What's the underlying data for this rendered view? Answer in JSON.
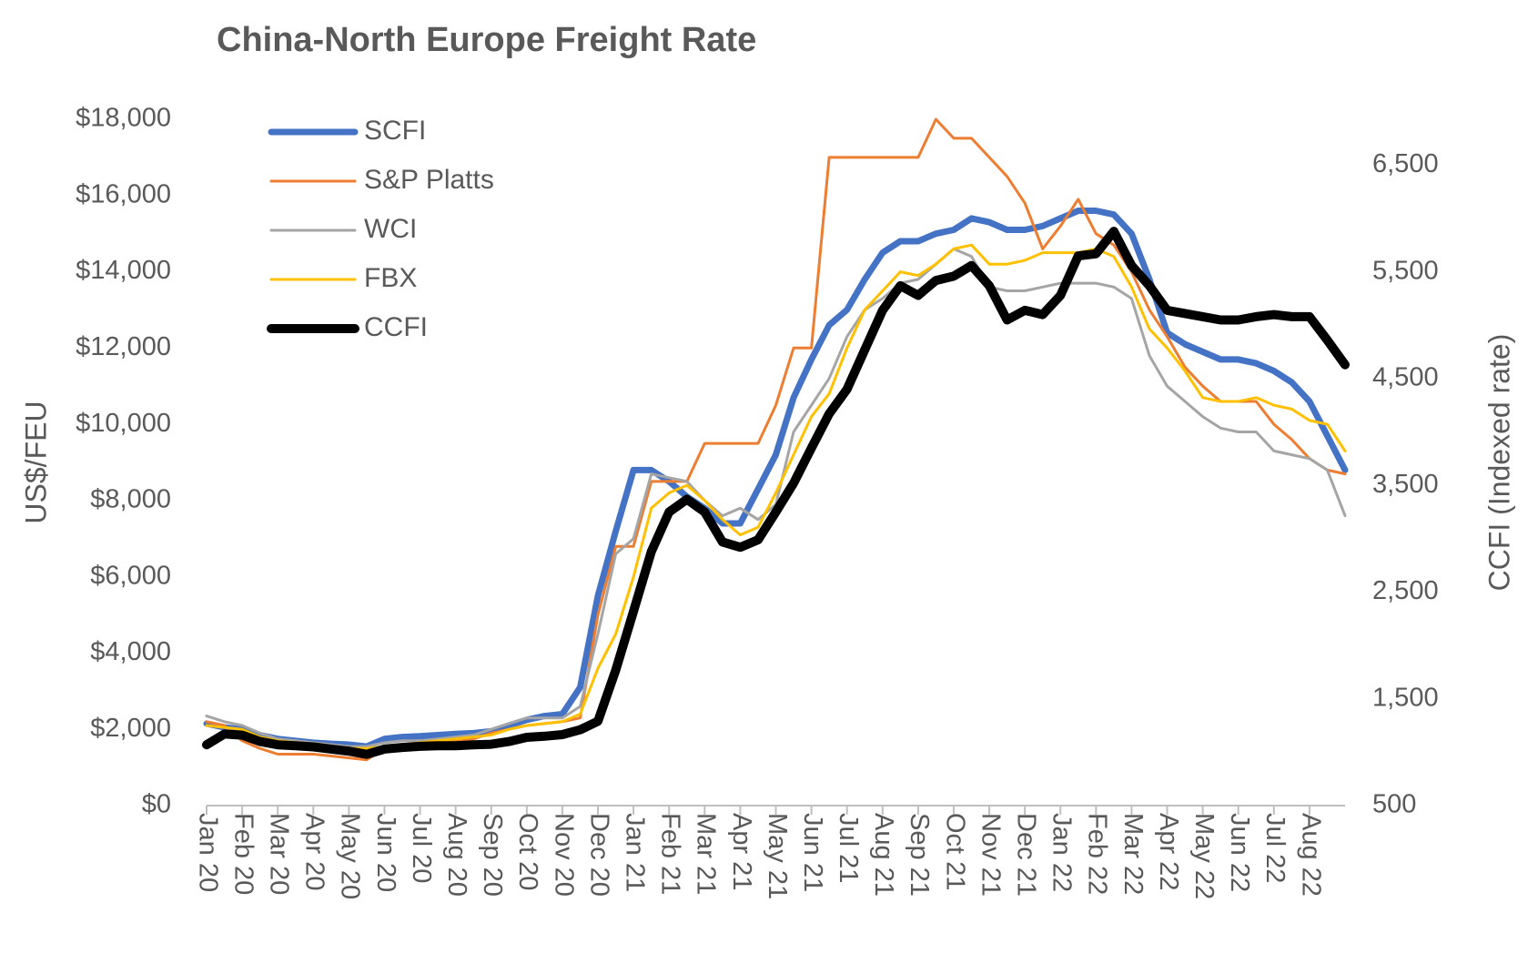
{
  "chart_data": {
    "type": "line",
    "title": "China-North Europe Freight Rate",
    "y_label": "US$/FEU",
    "y2_label": "CCFI (Indexed rate)",
    "legend": "upper left",
    "grid": false,
    "categories": [
      "Jan 20",
      null,
      "Feb 20",
      null,
      "Mar 20",
      null,
      "Apr 20",
      null,
      "May 20",
      null,
      "Jun 20",
      null,
      "Jul 20",
      null,
      "Aug 20",
      null,
      "Sep 20",
      null,
      "Oct 20",
      null,
      "Nov 20",
      null,
      "Dec 20",
      null,
      "Jan 21",
      null,
      "Feb 21",
      null,
      "Mar 21",
      null,
      "Apr 21",
      null,
      "May 21",
      null,
      "Jun 21",
      null,
      "Jul 21",
      null,
      "Aug 21",
      null,
      "Sep 21",
      null,
      "Oct 21",
      null,
      "Nov 21",
      null,
      "Dec 21",
      null,
      "Jan 22",
      null,
      "Feb 22",
      null,
      "Mar 22",
      null,
      "Apr 22",
      null,
      "May 22",
      null,
      "Jun 22",
      null,
      "Jul 22",
      null,
      "Aug 22",
      null,
      null
    ],
    "ylim": [
      0,
      18000
    ],
    "yticks": [
      {
        "value": 0,
        "label": "$0"
      },
      {
        "value": 2000,
        "label": "$2,000"
      },
      {
        "value": 4000,
        "label": "$4,000"
      },
      {
        "value": 6000,
        "label": "$6,000"
      },
      {
        "value": 8000,
        "label": "$8,000"
      },
      {
        "value": 10000,
        "label": "$10,000"
      },
      {
        "value": 12000,
        "label": "$12,000"
      },
      {
        "value": 14000,
        "label": "$14,000"
      },
      {
        "value": 16000,
        "label": "$16,000"
      },
      {
        "value": 18000,
        "label": "$18,000"
      }
    ],
    "y2lim": [
      500,
      6930
    ],
    "y2ticks": [
      500,
      {
        "value": 1500,
        "label": "1,500"
      },
      {
        "value": 2500,
        "label": "2,500"
      },
      {
        "value": 3500,
        "label": "3,500"
      },
      {
        "value": 4500,
        "label": "4,500"
      },
      {
        "value": 5500,
        "label": "5,500"
      },
      {
        "value": 6500,
        "label": "6,500"
      }
    ],
    "series": [
      {
        "name": "SCFI",
        "color": "#4472c4",
        "width": 7,
        "values": [
          2150,
          2050,
          2000,
          1850,
          1750,
          1700,
          1650,
          1620,
          1600,
          1550,
          1750,
          1800,
          1820,
          1850,
          1880,
          1900,
          1950,
          2100,
          2250,
          2350,
          2400,
          3100,
          5500,
          7200,
          8800,
          8800,
          8500,
          8100,
          7800,
          7400,
          7400,
          8300,
          9200,
          10700,
          11700,
          12600,
          13000,
          13800,
          14500,
          14800,
          14800,
          15000,
          15100,
          15400,
          15300,
          15100,
          15100,
          15200,
          15400,
          15600,
          15600,
          15500,
          15000,
          13800,
          12400,
          12100,
          11900,
          11700,
          11700,
          11600,
          11400,
          11100,
          10600,
          9700,
          8800
        ]
      },
      {
        "name": "S&P Platts",
        "color": "#ed7d31",
        "width": 3,
        "values": [
          2200,
          2100,
          1700,
          1500,
          1350,
          1350,
          1350,
          1300,
          1250,
          1200,
          1500,
          1600,
          1650,
          1700,
          1700,
          1750,
          1900,
          2000,
          2100,
          2150,
          2200,
          2300,
          5000,
          6800,
          6800,
          8500,
          8500,
          8500,
          9500,
          9500,
          9500,
          9500,
          10500,
          12000,
          12000,
          17000,
          17000,
          17000,
          17000,
          17000,
          17000,
          18000,
          17500,
          17500,
          17000,
          16500,
          15800,
          14600,
          15200,
          15900,
          15000,
          14700,
          14000,
          13000,
          12300,
          11500,
          11000,
          10600,
          10600,
          10600,
          10000,
          9600,
          9100,
          8800,
          8700
        ]
      },
      {
        "name": "WCI",
        "color": "#a5a5a5",
        "width": 3,
        "values": [
          2350,
          2200,
          2100,
          1900,
          1750,
          1700,
          1650,
          1600,
          1550,
          1550,
          1650,
          1700,
          1700,
          1750,
          1800,
          1850,
          2000,
          2150,
          2300,
          2300,
          2300,
          2600,
          4500,
          6600,
          7000,
          8700,
          8600,
          8500,
          8000,
          7600,
          7800,
          7500,
          7900,
          9800,
          10500,
          11200,
          12300,
          13000,
          13300,
          13700,
          13800,
          14200,
          14600,
          14400,
          13600,
          13500,
          13500,
          13600,
          13700,
          13700,
          13700,
          13600,
          13300,
          11800,
          11000,
          10600,
          10200,
          9900,
          9800,
          9800,
          9300,
          9200,
          9100,
          8800,
          7600
        ]
      },
      {
        "name": "FBX",
        "color": "#ffc000",
        "width": 3,
        "values": [
          2100,
          2050,
          2000,
          1800,
          1700,
          1650,
          1600,
          1550,
          1500,
          1500,
          1550,
          1600,
          1650,
          1700,
          1750,
          1800,
          1850,
          2000,
          2100,
          2150,
          2200,
          2400,
          3600,
          4500,
          6000,
          7800,
          8200,
          8400,
          8000,
          7500,
          7100,
          7300,
          8200,
          9200,
          10200,
          10800,
          12000,
          13000,
          13500,
          14000,
          13900,
          14200,
          14600,
          14700,
          14200,
          14200,
          14300,
          14500,
          14500,
          14500,
          14600,
          14400,
          13600,
          12500,
          12000,
          11400,
          10700,
          10600,
          10600,
          10700,
          10500,
          10400,
          10100,
          10000,
          9300
        ]
      },
      {
        "name": "CCFI",
        "color": "#000000",
        "width": 10,
        "axis": "y2",
        "values": [
          1070,
          1170,
          1160,
          1100,
          1070,
          1060,
          1050,
          1030,
          1010,
          980,
          1030,
          1045,
          1055,
          1060,
          1060,
          1070,
          1075,
          1100,
          1140,
          1150,
          1165,
          1210,
          1290,
          1770,
          2320,
          2880,
          3250,
          3370,
          3250,
          2970,
          2920,
          2990,
          3250,
          3520,
          3850,
          4170,
          4400,
          4770,
          5140,
          5370,
          5280,
          5420,
          5460,
          5560,
          5370,
          5050,
          5140,
          5100,
          5280,
          5650,
          5670,
          5880,
          5560,
          5370,
          5140,
          5110,
          5080,
          5050,
          5050,
          5080,
          5100,
          5080,
          5080,
          4860,
          4630
        ]
      }
    ]
  }
}
